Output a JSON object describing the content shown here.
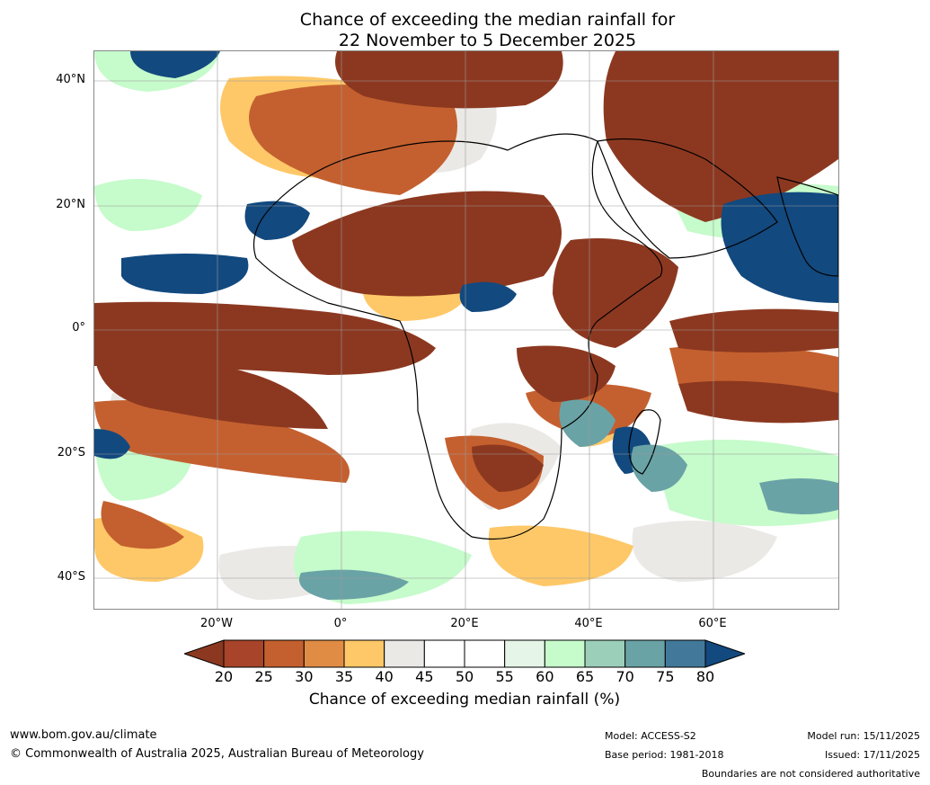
{
  "title": {
    "line1": "Chance of exceeding the median rainfall for",
    "line2": "22 November to 5 December 2025"
  },
  "map": {
    "region": "Africa",
    "lat_labels": [
      "40°N",
      "20°N",
      "0°",
      "20°S",
      "40°S"
    ],
    "lon_labels": [
      "20°W",
      "0°",
      "20°E",
      "40°E",
      "60°E"
    ],
    "features": [
      {
        "name": "dry-band-sahel",
        "category": "20"
      },
      {
        "name": "dry-band-equatorial-atlantic",
        "category": "20"
      },
      {
        "name": "dry-band-south-atlantic",
        "category": "25"
      },
      {
        "name": "dry-middle-east",
        "category": "20"
      },
      {
        "name": "dry-east-africa",
        "category": "20"
      },
      {
        "name": "dry-north-africa",
        "category": "30"
      },
      {
        "name": "dry-southern-africa",
        "category": "25"
      },
      {
        "name": "wet-tropical-atlantic",
        "category": "80"
      },
      {
        "name": "wet-arabian-sea",
        "category": "80"
      },
      {
        "name": "wet-madagascar",
        "category": "75"
      },
      {
        "name": "wet-central-africa",
        "category": "80"
      },
      {
        "name": "wet-north-atlantic",
        "category": "75"
      },
      {
        "name": "moist-southern-ocean",
        "category": "60"
      }
    ]
  },
  "colorbar": {
    "ticks": [
      "20",
      "25",
      "30",
      "35",
      "40",
      "45",
      "50",
      "55",
      "60",
      "65",
      "70",
      "75",
      "80"
    ],
    "colors": [
      "#8c3820",
      "#a8442a",
      "#c4602f",
      "#e08c45",
      "#fec868",
      "#ebe9e6",
      "#ffffff",
      "#ffffff",
      "#e5f5e8",
      "#c6fbcb",
      "#9bcfba",
      "#6aa3a6",
      "#42799a",
      "#12497f"
    ],
    "label": "Chance of exceeding median rainfall (%)"
  },
  "footer": {
    "url": "www.bom.gov.au/climate",
    "copyright": "© Commonwealth of Australia 2025, Australian Bureau of Meteorology",
    "model": "Model: ACCESS-S2",
    "base_period": "Base period: 1981-2018",
    "model_run": "Model run: 15/11/2025",
    "issued": "Issued: 17/11/2025",
    "disclaimer": "Boundaries are not considered authoritative"
  }
}
